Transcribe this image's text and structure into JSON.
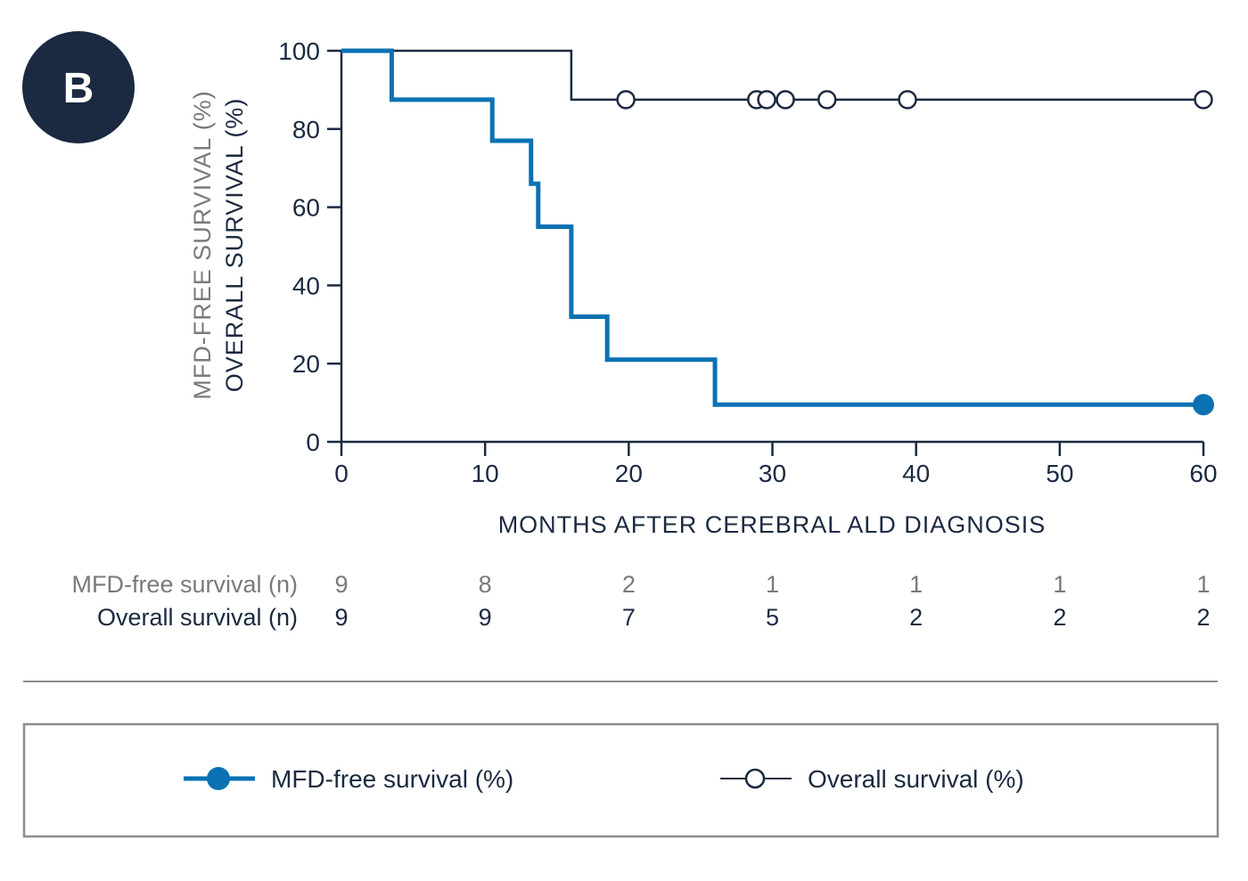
{
  "panel_badge": {
    "label": "B",
    "color": "#1b2a41"
  },
  "colors": {
    "mfd_free": "#0a72b3",
    "overall": "#1b2a41",
    "mfd_label": "#7a7a7a",
    "dark_text": "#1b2a41",
    "divider": "#8c8c8c",
    "legend_border": "#8c8c8c"
  },
  "chart_data": {
    "type": "line",
    "title": "",
    "xlabel": "MONTHS AFTER CEREBRAL ALD DIAGNOSIS",
    "ylabel_lines": [
      "MFD-FREE SURVIVAL (%)",
      "OVERALL SURVIVAL (%)"
    ],
    "xlim": [
      0,
      60
    ],
    "ylim": [
      0,
      100
    ],
    "xticks": [
      0,
      10,
      20,
      30,
      40,
      50,
      60
    ],
    "yticks": [
      0,
      20,
      40,
      60,
      80,
      100
    ],
    "grid": false,
    "legend_position": "bottom",
    "step": true,
    "series": [
      {
        "name": "MFD-free survival (%)",
        "color": "#0a72b3",
        "marker": "filled-circle",
        "x": [
          0,
          3.5,
          10.5,
          13.2,
          13.7,
          16,
          18.5,
          26,
          60
        ],
        "y": [
          100,
          87.5,
          77,
          66,
          55,
          32,
          21,
          9.5,
          9.5
        ],
        "censored": [
          {
            "x": 60,
            "y": 9.5
          }
        ]
      },
      {
        "name": "Overall survival (%)",
        "color": "#1b2a41",
        "marker": "open-circle",
        "x": [
          0,
          16,
          60
        ],
        "y": [
          100,
          87.5,
          87.5
        ],
        "censored": [
          {
            "x": 19.8,
            "y": 87.5
          },
          {
            "x": 28.9,
            "y": 87.5
          },
          {
            "x": 29.6,
            "y": 87.5
          },
          {
            "x": 30.9,
            "y": 87.5
          },
          {
            "x": 33.8,
            "y": 87.5
          },
          {
            "x": 39.4,
            "y": 87.5
          },
          {
            "x": 60,
            "y": 87.5
          }
        ]
      }
    ],
    "risk_table": {
      "time_points": [
        0,
        10,
        20,
        30,
        40,
        50,
        60
      ],
      "rows": [
        {
          "label": "MFD-free survival (n)",
          "values": [
            "9",
            "8",
            "2",
            "1",
            "1",
            "1",
            "1"
          ]
        },
        {
          "label": "Overall survival (n)",
          "values": [
            "9",
            "9",
            "7",
            "5",
            "2",
            "2",
            "2"
          ]
        }
      ]
    }
  },
  "legend": {
    "items": [
      {
        "label": "MFD-free survival (%)",
        "marker": "filled-circle"
      },
      {
        "label": "Overall survival (%)",
        "marker": "open-circle"
      }
    ]
  }
}
